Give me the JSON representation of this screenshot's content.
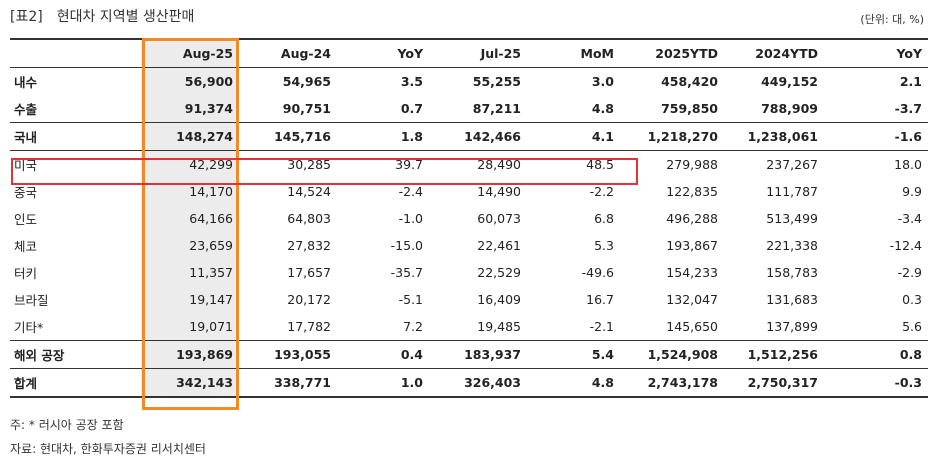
{
  "header": {
    "tag": "[표2]",
    "title": "현대차 지역별 생산판매",
    "unit": "(단위: 대, %)"
  },
  "table": {
    "columns": [
      "",
      "Aug-25",
      "Aug-24",
      "YoY",
      "Jul-25",
      "MoM",
      "2025YTD",
      "2024YTD",
      "YoY"
    ],
    "rows": [
      {
        "label": "내수",
        "cells": [
          "56,900",
          "54,965",
          "3.5",
          "55,255",
          "3.0",
          "458,420",
          "449,152",
          "2.1"
        ]
      },
      {
        "label": "수출",
        "cells": [
          "91,374",
          "90,751",
          "0.7",
          "87,211",
          "4.8",
          "759,850",
          "788,909",
          "-3.7"
        ]
      },
      {
        "label": "국내",
        "cells": [
          "148,274",
          "145,716",
          "1.8",
          "142,466",
          "4.1",
          "1,218,270",
          "1,238,061",
          "-1.6"
        ]
      },
      {
        "label": "미국",
        "cells": [
          "42,299",
          "30,285",
          "39.7",
          "28,490",
          "48.5",
          "279,988",
          "237,267",
          "18.0"
        ]
      },
      {
        "label": "중국",
        "cells": [
          "14,170",
          "14,524",
          "-2.4",
          "14,490",
          "-2.2",
          "122,835",
          "111,787",
          "9.9"
        ]
      },
      {
        "label": "인도",
        "cells": [
          "64,166",
          "64,803",
          "-1.0",
          "60,073",
          "6.8",
          "496,288",
          "513,499",
          "-3.4"
        ]
      },
      {
        "label": "체코",
        "cells": [
          "23,659",
          "27,832",
          "-15.0",
          "22,461",
          "5.3",
          "193,867",
          "221,338",
          "-12.4"
        ]
      },
      {
        "label": "터키",
        "cells": [
          "11,357",
          "17,657",
          "-35.7",
          "22,529",
          "-49.6",
          "154,233",
          "158,783",
          "-2.9"
        ]
      },
      {
        "label": "브라질",
        "cells": [
          "19,147",
          "20,172",
          "-5.1",
          "16,409",
          "16.7",
          "132,047",
          "131,683",
          "0.3"
        ]
      },
      {
        "label": "기타*",
        "cells": [
          "19,071",
          "17,782",
          "7.2",
          "19,485",
          "-2.1",
          "145,650",
          "137,899",
          "5.6"
        ]
      },
      {
        "label": "해외 공장",
        "cells": [
          "193,869",
          "193,055",
          "0.4",
          "183,937",
          "5.4",
          "1,524,908",
          "1,512,256",
          "0.8"
        ]
      },
      {
        "label": "합계",
        "cells": [
          "342,143",
          "338,771",
          "1.0",
          "326,403",
          "4.8",
          "2,743,178",
          "2,750,317",
          "-0.3"
        ]
      }
    ]
  },
  "footnotes": {
    "note": "주: * 러시아 공장 포함",
    "source": "자료: 현대차, 한화투자증권 리서치센터"
  },
  "colors": {
    "highlight_column": "#f28a26",
    "highlight_row": "#e0323a",
    "shade": "#ececec"
  }
}
